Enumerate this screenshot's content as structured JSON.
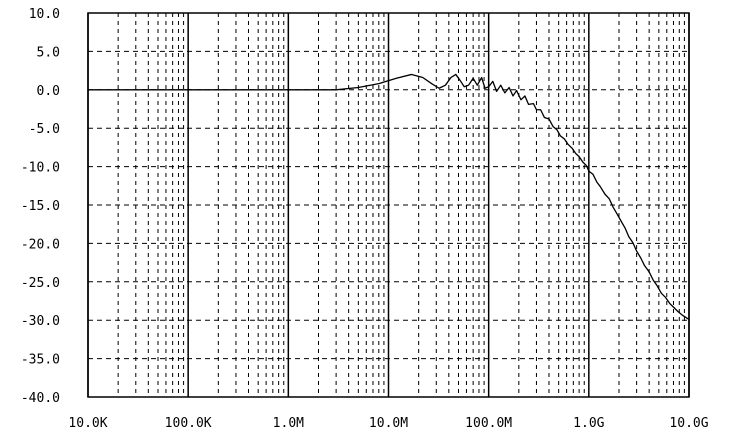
{
  "chart_data": {
    "type": "line",
    "title": "",
    "xlabel": "",
    "ylabel": "",
    "x_scale": "log",
    "xlim": [
      10000,
      10000000000
    ],
    "ylim": [
      -40,
      10
    ],
    "grid": true,
    "legend": "none",
    "colors": {
      "line": "#000000",
      "grid": "#000000",
      "frame": "#000000"
    },
    "x_ticks": [
      {
        "value": 10000,
        "label": "10.0K"
      },
      {
        "value": 100000,
        "label": "100.0K"
      },
      {
        "value": 1000000,
        "label": "1.0M"
      },
      {
        "value": 10000000,
        "label": "10.0M"
      },
      {
        "value": 100000000,
        "label": "100.0M"
      },
      {
        "value": 1000000000,
        "label": "1.0G"
      },
      {
        "value": 10000000000,
        "label": "10.0G"
      }
    ],
    "y_ticks": [
      {
        "value": 10,
        "label": "10.0"
      },
      {
        "value": 5,
        "label": "5.0"
      },
      {
        "value": 0,
        "label": "0.0"
      },
      {
        "value": -5,
        "label": "-5.0"
      },
      {
        "value": -10,
        "label": "-10.0"
      },
      {
        "value": -15,
        "label": "-15.0"
      },
      {
        "value": -20,
        "label": "-20.0"
      },
      {
        "value": -25,
        "label": "-25.0"
      },
      {
        "value": -30,
        "label": "-30.0"
      },
      {
        "value": -35,
        "label": "-35.0"
      },
      {
        "value": -40,
        "label": "-40.0"
      }
    ],
    "series": [
      {
        "points": [
          [
            10000,
            0.0
          ],
          [
            100000,
            0.0
          ],
          [
            1000000,
            0.0
          ],
          [
            3000000,
            0.0
          ],
          [
            5000000,
            0.3
          ],
          [
            8000000,
            0.8
          ],
          [
            12000000,
            1.5
          ],
          [
            17000000,
            2.0
          ],
          [
            22000000,
            1.6
          ],
          [
            27000000,
            0.8
          ],
          [
            32000000,
            0.2
          ],
          [
            37000000,
            0.6
          ],
          [
            42000000,
            1.6
          ],
          [
            47000000,
            2.0
          ],
          [
            52000000,
            1.2
          ],
          [
            57000000,
            0.4
          ],
          [
            63000000,
            0.6
          ],
          [
            70000000,
            1.5
          ],
          [
            77000000,
            0.6
          ],
          [
            85000000,
            1.6
          ],
          [
            92000000,
            0.2
          ],
          [
            100000000,
            0.4
          ],
          [
            110000000,
            1.1
          ],
          [
            120000000,
            -0.2
          ],
          [
            132000000,
            0.6
          ],
          [
            145000000,
            -0.4
          ],
          [
            160000000,
            0.3
          ],
          [
            175000000,
            -0.8
          ],
          [
            190000000,
            -0.1
          ],
          [
            210000000,
            -1.3
          ],
          [
            230000000,
            -0.8
          ],
          [
            250000000,
            -1.9
          ],
          [
            280000000,
            -1.8
          ],
          [
            300000000,
            -2.6
          ],
          [
            330000000,
            -2.6
          ],
          [
            360000000,
            -3.6
          ],
          [
            400000000,
            -3.8
          ],
          [
            440000000,
            -4.8
          ],
          [
            480000000,
            -5.2
          ],
          [
            520000000,
            -6.0
          ],
          [
            570000000,
            -6.4
          ],
          [
            620000000,
            -7.1
          ],
          [
            680000000,
            -7.6
          ],
          [
            740000000,
            -8.3
          ],
          [
            800000000,
            -8.7
          ],
          [
            870000000,
            -9.4
          ],
          [
            950000000,
            -9.9
          ],
          [
            1000000000,
            -10.6
          ],
          [
            1100000000,
            -11.0
          ],
          [
            1200000000,
            -12.0
          ],
          [
            1300000000,
            -12.6
          ],
          [
            1450000000,
            -13.6
          ],
          [
            1600000000,
            -14.2
          ],
          [
            1750000000,
            -15.3
          ],
          [
            1900000000,
            -16.1
          ],
          [
            2100000000,
            -17.1
          ],
          [
            2300000000,
            -18.0
          ],
          [
            2500000000,
            -19.1
          ],
          [
            2750000000,
            -19.9
          ],
          [
            3000000000,
            -21.0
          ],
          [
            3300000000,
            -21.9
          ],
          [
            3600000000,
            -22.9
          ],
          [
            4000000000,
            -23.7
          ],
          [
            4400000000,
            -24.8
          ],
          [
            4800000000,
            -25.5
          ],
          [
            5300000000,
            -26.5
          ],
          [
            5800000000,
            -27.0
          ],
          [
            6400000000,
            -27.8
          ],
          [
            7000000000,
            -28.3
          ],
          [
            7800000000,
            -28.9
          ],
          [
            8700000000,
            -29.4
          ],
          [
            10000000000,
            -29.9
          ]
        ]
      }
    ]
  }
}
